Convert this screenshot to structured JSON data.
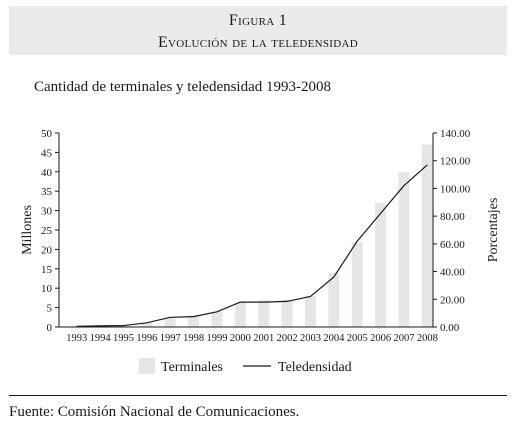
{
  "figure": {
    "label": "Figura 1",
    "title": "Evolución de la teledensidad"
  },
  "subtitle": "Cantidad de terminales y teledensidad 1993-2008",
  "source": "Fuente: Comisión Nacional de Comunicaciones.",
  "chart_data": {
    "type": "bar",
    "categories": [
      "1993",
      "1994",
      "1995",
      "1996",
      "1997",
      "1998",
      "1999",
      "2000",
      "2001",
      "2002",
      "2003",
      "2004",
      "2005",
      "2006",
      "2007",
      "2008"
    ],
    "series": [
      {
        "name": "Terminales",
        "type": "bar",
        "axis": "left",
        "color": "#e6e6e6",
        "values": [
          0.3,
          0.4,
          0.5,
          1.0,
          2.5,
          3.0,
          4.0,
          6.5,
          7.0,
          7.0,
          8.0,
          14.0,
          22.0,
          32.0,
          40.0,
          47.0
        ]
      },
      {
        "name": "Teledensidad",
        "type": "line",
        "axis": "right",
        "color": "#1a1a1a",
        "values": [
          0.5,
          0.8,
          1.0,
          3.0,
          7.0,
          7.5,
          11.0,
          18.0,
          18.0,
          18.5,
          22.0,
          36.0,
          62.0,
          82.0,
          102.0,
          117.0
        ]
      }
    ],
    "ylabel_left": "Millones",
    "ylabel_right": "Porcentajes",
    "ylim_left": [
      0,
      50
    ],
    "ylim_right": [
      0,
      140
    ],
    "yticks_left": [
      "0",
      "5",
      "10",
      "15",
      "20",
      "25",
      "30",
      "35",
      "40",
      "45",
      "50"
    ],
    "yticks_right": [
      "0.00",
      "20.00",
      "40.00",
      "60.00",
      "80.00",
      "100.00",
      "120.00",
      "140.00"
    ],
    "legend_position": "bottom",
    "grid": false
  }
}
